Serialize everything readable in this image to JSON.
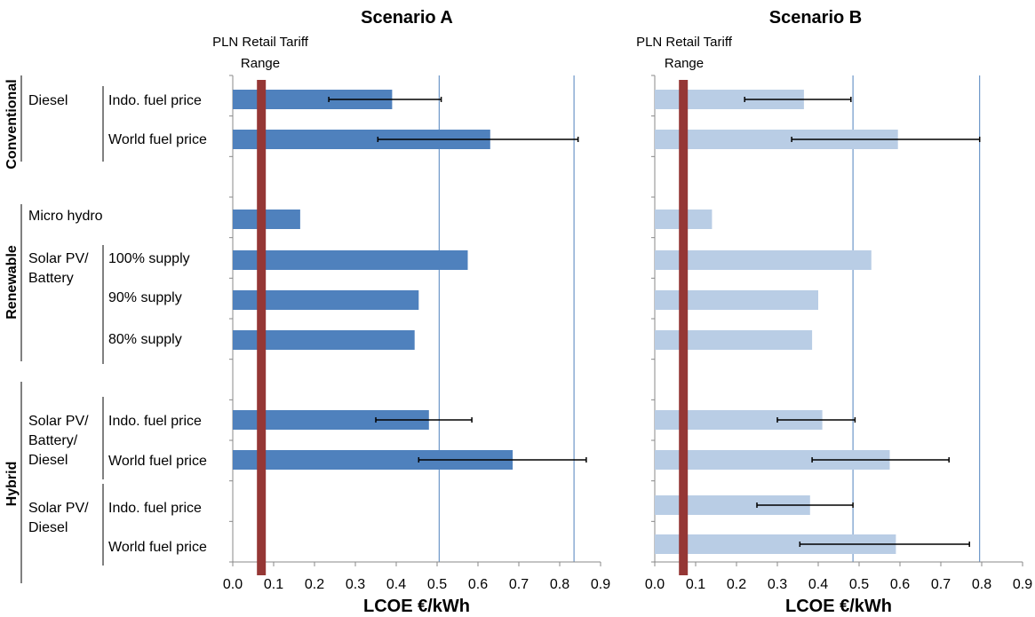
{
  "row_groups": [
    {
      "label": "Conventional",
      "subgroups": [
        {
          "label": "Diesel",
          "rows": [
            "Indo. fuel price",
            "World fuel price"
          ]
        }
      ]
    },
    {
      "label": "Renewable",
      "subgroups": [
        {
          "label": "Micro hydro",
          "rows": []
        },
        {
          "label": "Solar PV/\nBattery",
          "rows": [
            "100% supply",
            "90% supply",
            "80% supply"
          ]
        }
      ]
    },
    {
      "label": "Hybrid",
      "subgroups": [
        {
          "label": "Solar PV/\nBattery/\nDiesel",
          "rows": [
            "Indo. fuel price",
            "World fuel price"
          ]
        },
        {
          "label": "Solar PV/\nDiesel",
          "rows": [
            "Indo. fuel price",
            "World fuel price"
          ]
        }
      ]
    }
  ],
  "tariff_label_line1": "PLN Retail Tariff",
  "tariff_label_line2": "Range",
  "colors": {
    "scenario_a": "#4f81bd",
    "scenario_b": "#b9cde5",
    "tariff": "#953735",
    "ref_line": "#4f81bd"
  },
  "chart_data": [
    {
      "type": "bar",
      "orientation": "horizontal",
      "title": "Scenario A",
      "xlabel": "LCOE €/kWh",
      "xlim": [
        0,
        0.9
      ],
      "xticks": [
        "0.0",
        "0.1",
        "0.2",
        "0.3",
        "0.4",
        "0.5",
        "0.6",
        "0.7",
        "0.8",
        "0.9"
      ],
      "tariff_value": 0.07,
      "reference_lines": [
        0.505,
        0.835
      ],
      "categories": [
        "Diesel – Indo. fuel price",
        "Diesel – World fuel price",
        "Micro hydro",
        "Solar PV/Battery – 100% supply",
        "Solar PV/Battery – 90% supply",
        "Solar PV/Battery – 80% supply",
        "Solar PV/Battery/Diesel – Indo. fuel price",
        "Solar PV/Battery/Diesel – World fuel price",
        "Solar PV/Diesel – Indo. fuel price",
        "Solar PV/Diesel – World fuel price"
      ],
      "values": [
        0.39,
        0.63,
        0.165,
        0.575,
        0.455,
        0.445,
        0.48,
        0.685,
        null,
        null
      ],
      "error_low": [
        0.235,
        0.355,
        null,
        null,
        null,
        null,
        0.35,
        0.455,
        null,
        null
      ],
      "error_high": [
        0.51,
        0.845,
        null,
        null,
        null,
        null,
        0.585,
        0.865,
        null,
        null
      ]
    },
    {
      "type": "bar",
      "orientation": "horizontal",
      "title": "Scenario B",
      "xlabel": "LCOE €/kWh",
      "xlim": [
        0,
        0.9
      ],
      "xticks": [
        "0.0",
        "0.1",
        "0.2",
        "0.3",
        "0.4",
        "0.5",
        "0.6",
        "0.7",
        "0.8",
        "0.9"
      ],
      "tariff_value": 0.07,
      "reference_lines": [
        0.485,
        0.795
      ],
      "categories": [
        "Diesel – Indo. fuel price",
        "Diesel – World fuel price",
        "Micro hydro",
        "Solar PV/Battery – 100% supply",
        "Solar PV/Battery – 90% supply",
        "Solar PV/Battery – 80% supply",
        "Solar PV/Battery/Diesel – Indo. fuel price",
        "Solar PV/Battery/Diesel – World fuel price",
        "Solar PV/Diesel – Indo. fuel price",
        "Solar PV/Diesel – World fuel price"
      ],
      "values": [
        0.365,
        0.595,
        0.14,
        0.53,
        0.4,
        0.385,
        0.41,
        0.575,
        0.38,
        0.59
      ],
      "error_low": [
        0.22,
        0.335,
        null,
        null,
        null,
        null,
        0.3,
        0.385,
        0.25,
        0.355
      ],
      "error_high": [
        0.48,
        0.795,
        null,
        null,
        null,
        null,
        0.49,
        0.72,
        0.485,
        0.77
      ]
    }
  ]
}
